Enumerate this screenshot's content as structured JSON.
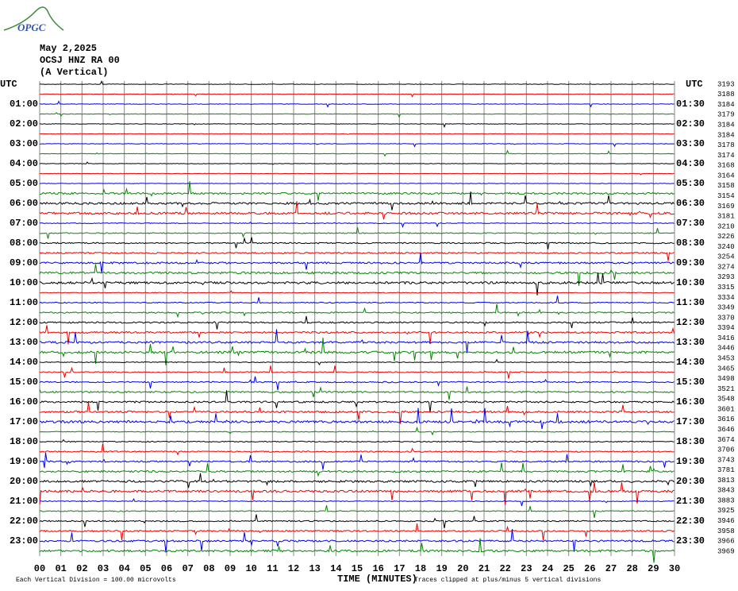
{
  "header": {
    "logo": "OPGC",
    "date": "May 2,2025",
    "station": "OCSJ HNZ RA 00",
    "component": "(A Vertical)"
  },
  "left_axis": {
    "title": "UTC",
    "labels": [
      "01:00",
      "02:00",
      "03:00",
      "04:00",
      "05:00",
      "06:00",
      "07:00",
      "08:00",
      "09:00",
      "10:00",
      "11:00",
      "12:00",
      "13:00",
      "14:00",
      "15:00",
      "16:00",
      "17:00",
      "18:00",
      "19:00",
      "20:00",
      "21:00",
      "22:00",
      "23:00"
    ]
  },
  "right_axis": {
    "title": "UTC",
    "labels": [
      "01:30",
      "02:30",
      "03:30",
      "04:30",
      "05:30",
      "06:30",
      "07:30",
      "08:30",
      "09:30",
      "10:30",
      "11:30",
      "12:30",
      "13:30",
      "14:30",
      "15:30",
      "16:30",
      "17:30",
      "18:30",
      "19:30",
      "20:30",
      "21:30",
      "22:30",
      "23:30"
    ]
  },
  "counts": [
    "3193",
    "3188",
    "3184",
    "3179",
    "3184",
    "3184",
    "3178",
    "3174",
    "3168",
    "3164",
    "3158",
    "3154",
    "3169",
    "3181",
    "3210",
    "3226",
    "3240",
    "3254",
    "3274",
    "3293",
    "3315",
    "3334",
    "3349",
    "3370",
    "3394",
    "3416",
    "3446",
    "3453",
    "3465",
    "3498",
    "3521",
    "3548",
    "3601",
    "3616",
    "3646",
    "3674",
    "3706",
    "3743",
    "3781",
    "3813",
    "3843",
    "3883",
    "3925",
    "3946",
    "3958",
    "3966",
    "3969"
  ],
  "x_axis": {
    "title": "TIME (MINUTES)",
    "ticks": [
      "00",
      "01",
      "02",
      "03",
      "04",
      "05",
      "06",
      "07",
      "08",
      "09",
      "10",
      "11",
      "12",
      "13",
      "14",
      "15",
      "16",
      "17",
      "18",
      "19",
      "20",
      "21",
      "22",
      "23",
      "24",
      "25",
      "26",
      "27",
      "28",
      "29",
      "30"
    ]
  },
  "footer": {
    "scale": "Each Vertical Division =  100.00 microvolts",
    "clip": "Traces clipped at plus/minus 5 vertical divisions"
  }
}
